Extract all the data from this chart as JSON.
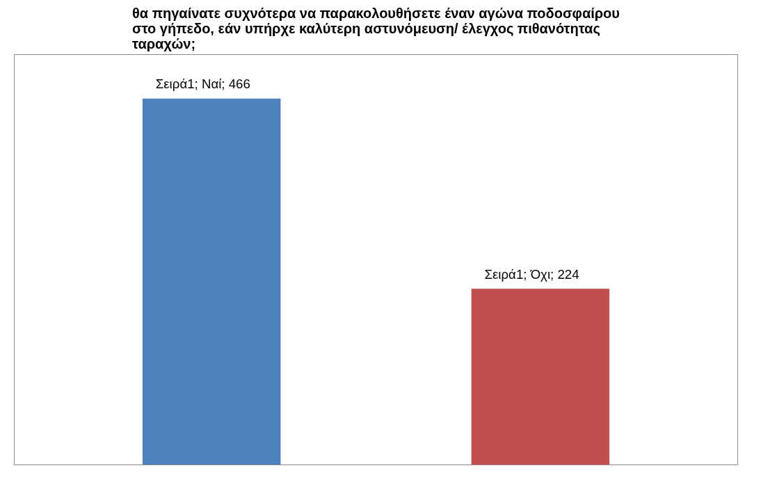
{
  "chart_data": {
    "type": "bar",
    "title": "θα πηγαίνατε συχνότερα να παρακολουθήσετε έναν αγώνα ποδοσφαίρου\nστο γήπεδο, εάν υπήρχε καλύτερη αστυνόμευση/ έλεγχος πιθανότητας\nταραχών;",
    "categories": [
      null,
      null
    ],
    "values": [
      466,
      224
    ],
    "colors": [
      "#4f81bd",
      "#c0504d"
    ],
    "value_labels": [
      "Σειρά1; Ναί; 466",
      "Σειρά1; Όχι; 224"
    ],
    "grid": false
  }
}
